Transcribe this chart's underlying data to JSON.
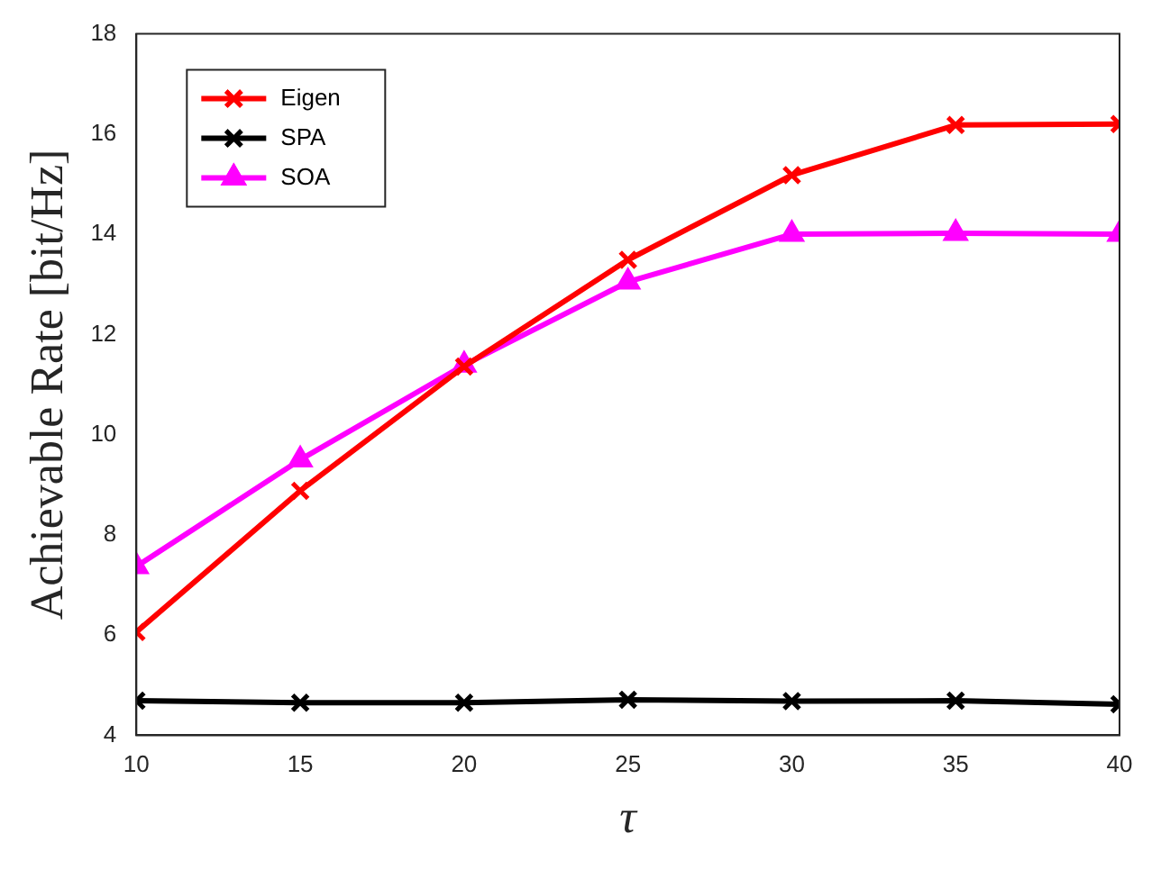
{
  "chart_data": {
    "type": "line",
    "xlabel": "τ",
    "ylabel": "Achievable Rate [bit/Hz]",
    "x": [
      10,
      15,
      20,
      25,
      30,
      35,
      40
    ],
    "xlim": [
      10,
      40
    ],
    "xticks": [
      10,
      15,
      20,
      25,
      30,
      35,
      40
    ],
    "ylim": [
      4,
      18
    ],
    "yticks": [
      4,
      6,
      8,
      10,
      12,
      14,
      16,
      18
    ],
    "grid": false,
    "legend": "top left",
    "line_style": "solid",
    "series": [
      {
        "name": "Eigen",
        "color": "#ff0000",
        "marker": "cross",
        "values": [
          6.06,
          8.88,
          11.36,
          13.49,
          15.18,
          16.18,
          16.2
        ]
      },
      {
        "name": "SPA",
        "color": "#000000",
        "marker": "cross",
        "values": [
          4.69,
          4.65,
          4.65,
          4.71,
          4.68,
          4.69,
          4.62
        ]
      },
      {
        "name": "SOA",
        "color": "#ff00ff",
        "marker": "triangle",
        "values": [
          7.37,
          9.5,
          11.39,
          13.05,
          14.0,
          14.02,
          14.0
        ]
      }
    ]
  }
}
